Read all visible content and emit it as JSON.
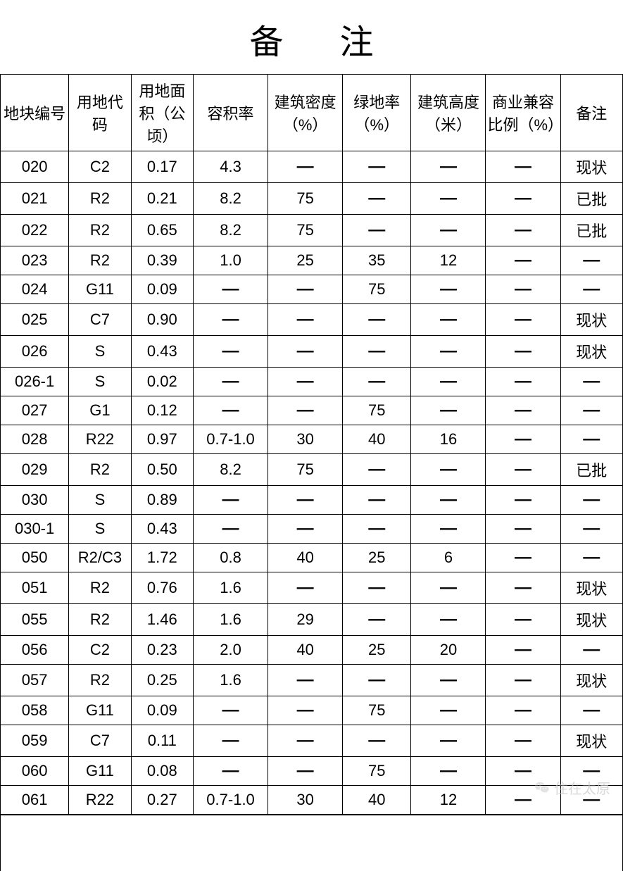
{
  "title": "备注",
  "table": {
    "type": "table",
    "background_color": "#ffffff",
    "border_color": "#000000",
    "text_color": "#000000",
    "header_fontsize": 22,
    "cell_fontsize": 22,
    "title_fontsize": 48,
    "columns": [
      "地块编号",
      "用地代码",
      "用地面积（公顷）",
      "容积率",
      "建筑密度（%）",
      "绿地率（%）",
      "建筑高度（米）",
      "商业兼容比例（%）",
      "备注"
    ],
    "column_widths_pct": [
      11,
      10,
      10,
      12,
      12,
      11,
      12,
      12,
      10
    ],
    "dash": "—",
    "rows": [
      [
        "020",
        "C2",
        "0.17",
        "4.3",
        "—",
        "—",
        "—",
        "—",
        "现状"
      ],
      [
        "021",
        "R2",
        "0.21",
        "8.2",
        "75",
        "—",
        "—",
        "—",
        "已批"
      ],
      [
        "022",
        "R2",
        "0.65",
        "8.2",
        "75",
        "—",
        "—",
        "—",
        "已批"
      ],
      [
        "023",
        "R2",
        "0.39",
        "1.0",
        "25",
        "35",
        "12",
        "—",
        "—"
      ],
      [
        "024",
        "G11",
        "0.09",
        "—",
        "—",
        "75",
        "—",
        "—",
        "—"
      ],
      [
        "025",
        "C7",
        "0.90",
        "—",
        "—",
        "—",
        "—",
        "—",
        "现状"
      ],
      [
        "026",
        "S",
        "0.43",
        "—",
        "—",
        "—",
        "—",
        "—",
        "现状"
      ],
      [
        "026-1",
        "S",
        "0.02",
        "—",
        "—",
        "—",
        "—",
        "—",
        "—"
      ],
      [
        "027",
        "G1",
        "0.12",
        "—",
        "—",
        "75",
        "—",
        "—",
        "—"
      ],
      [
        "028",
        "R22",
        "0.97",
        "0.7-1.0",
        "30",
        "40",
        "16",
        "—",
        "—"
      ],
      [
        "029",
        "R2",
        "0.50",
        "8.2",
        "75",
        "—",
        "—",
        "—",
        "已批"
      ],
      [
        "030",
        "S",
        "0.89",
        "—",
        "—",
        "—",
        "—",
        "—",
        "—"
      ],
      [
        "030-1",
        "S",
        "0.43",
        "—",
        "—",
        "—",
        "—",
        "—",
        "—"
      ],
      [
        "050",
        "R2/C3",
        "1.72",
        "0.8",
        "40",
        "25",
        "6",
        "—",
        "—"
      ],
      [
        "051",
        "R2",
        "0.76",
        "1.6",
        "—",
        "—",
        "—",
        "—",
        "现状"
      ],
      [
        "055",
        "R2",
        "1.46",
        "1.6",
        "29",
        "—",
        "—",
        "—",
        "现状"
      ],
      [
        "056",
        "C2",
        "0.23",
        "2.0",
        "40",
        "25",
        "20",
        "—",
        "—"
      ],
      [
        "057",
        "R2",
        "0.25",
        "1.6",
        "—",
        "—",
        "—",
        "—",
        "现状"
      ],
      [
        "058",
        "G11",
        "0.09",
        "—",
        "—",
        "75",
        "—",
        "—",
        "—"
      ],
      [
        "059",
        "C7",
        "0.11",
        "—",
        "—",
        "—",
        "—",
        "—",
        "现状"
      ],
      [
        "060",
        "G11",
        "0.08",
        "—",
        "—",
        "75",
        "—",
        "—",
        "—"
      ],
      [
        "061",
        "R22",
        "0.27",
        "0.7-1.0",
        "30",
        "40",
        "12",
        "—",
        "—"
      ]
    ]
  },
  "watermark": {
    "text": "住在太原",
    "color": "rgba(200,200,200,0.7)",
    "fontsize": 20
  }
}
